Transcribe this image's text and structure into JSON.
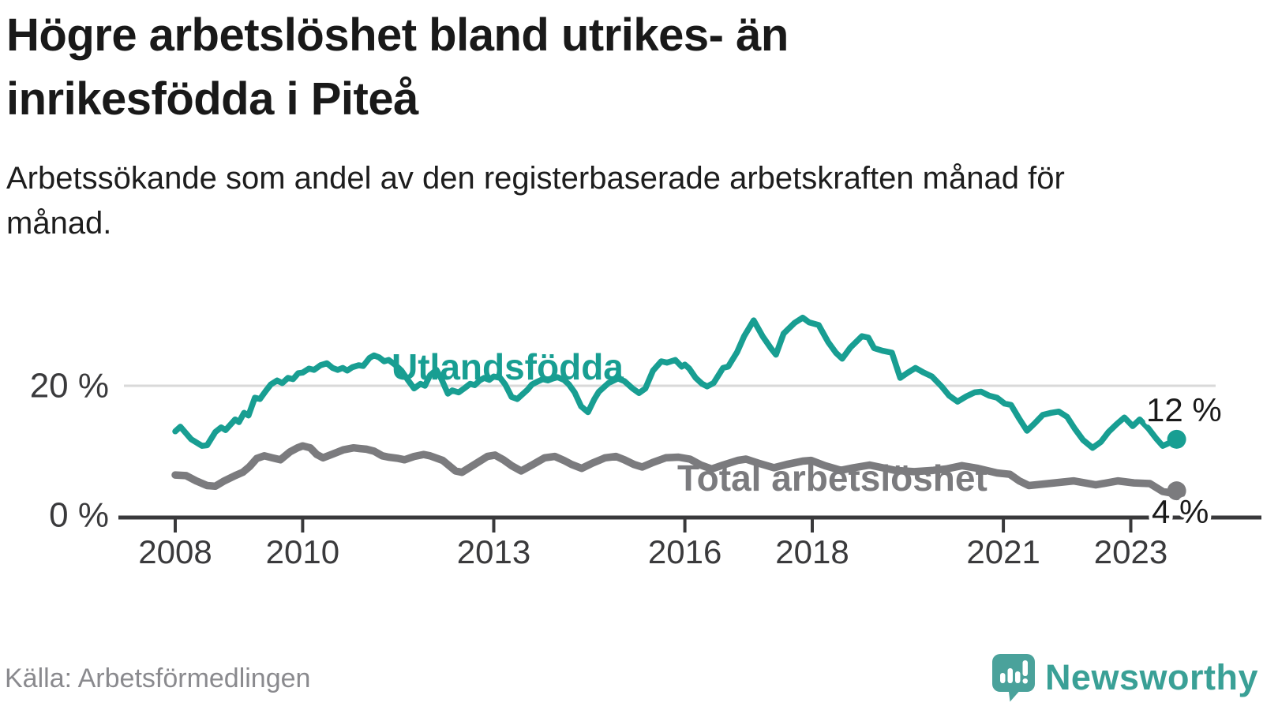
{
  "header": {
    "title": "Högre arbetslöshet bland utrikes- än inrikesfödda i Piteå",
    "subtitle": "Arbetssökande som andel av den registerbaserade arbetskraften månad för månad."
  },
  "footer": {
    "source": "Källa: Arbetsförmedlingen",
    "brand": "Newsworthy"
  },
  "colors": {
    "accent_teal": "#189e92",
    "line_gray": "#7b7b7e",
    "axis": "#39393b",
    "gridline": "#d9d9d9",
    "value_label": "#1a1a1a",
    "tick_text": "#3a3a3c",
    "logo_bubble": "#4aa29b",
    "logo_wordmark": "#3aa096"
  },
  "chart_data": {
    "type": "line",
    "title": "Högre arbetslöshet bland utrikes- än inrikesfödda i Piteå",
    "subtitle": "Arbetssökande som andel av den registerbaserade arbetskraften månad för månad.",
    "x_axis": {
      "unit": "year",
      "range": [
        2007.6,
        2024.4
      ],
      "ticks": [
        2008,
        2010,
        2013,
        2016,
        2018,
        2021,
        2023
      ],
      "tick_labels": [
        "2008",
        "2010",
        "2013",
        "2016",
        "2018",
        "2021",
        "2023"
      ]
    },
    "y_axis": {
      "unit": "percent",
      "range": [
        0,
        32
      ],
      "grid_on": true,
      "ticks": [
        {
          "value": 20,
          "label": "20 %"
        },
        {
          "value": 0,
          "label": "0 %"
        }
      ]
    },
    "legend_position": "inline-labels",
    "series": [
      {
        "name": "Utlandsfödda",
        "color": "#189e92",
        "end_label": "12 %",
        "end_value": 12,
        "points": [
          [
            2008.0,
            13.1
          ],
          [
            2008.08,
            13.8
          ],
          [
            2008.25,
            11.9
          ],
          [
            2008.42,
            10.9
          ],
          [
            2008.5,
            11.0
          ],
          [
            2008.63,
            13.0
          ],
          [
            2008.72,
            13.7
          ],
          [
            2008.79,
            13.3
          ],
          [
            2008.94,
            14.9
          ],
          [
            2009.0,
            14.5
          ],
          [
            2009.08,
            15.9
          ],
          [
            2009.15,
            15.5
          ],
          [
            2009.25,
            18.2
          ],
          [
            2009.33,
            18.0
          ],
          [
            2009.42,
            19.2
          ],
          [
            2009.5,
            20.2
          ],
          [
            2009.6,
            20.8
          ],
          [
            2009.68,
            20.4
          ],
          [
            2009.77,
            21.2
          ],
          [
            2009.85,
            21.0
          ],
          [
            2009.93,
            21.9
          ],
          [
            2010.0,
            22.0
          ],
          [
            2010.1,
            22.6
          ],
          [
            2010.18,
            22.4
          ],
          [
            2010.28,
            23.1
          ],
          [
            2010.38,
            23.4
          ],
          [
            2010.47,
            22.7
          ],
          [
            2010.55,
            22.4
          ],
          [
            2010.63,
            22.7
          ],
          [
            2010.7,
            22.3
          ],
          [
            2010.78,
            22.8
          ],
          [
            2010.88,
            23.1
          ],
          [
            2010.95,
            23.0
          ],
          [
            2011.05,
            24.2
          ],
          [
            2011.12,
            24.6
          ],
          [
            2011.2,
            24.3
          ],
          [
            2011.28,
            23.7
          ],
          [
            2011.35,
            23.9
          ],
          [
            2011.45,
            23.2
          ],
          [
            2011.55,
            22.3
          ],
          [
            2011.65,
            20.9
          ],
          [
            2011.75,
            19.6
          ],
          [
            2011.85,
            20.3
          ],
          [
            2011.92,
            20.0
          ],
          [
            2012.0,
            21.6
          ],
          [
            2012.1,
            22.4
          ],
          [
            2012.18,
            21.0
          ],
          [
            2012.28,
            18.8
          ],
          [
            2012.35,
            19.3
          ],
          [
            2012.45,
            19.0
          ],
          [
            2012.55,
            19.7
          ],
          [
            2012.63,
            20.3
          ],
          [
            2012.7,
            20.1
          ],
          [
            2012.78,
            20.8
          ],
          [
            2012.85,
            21.2
          ],
          [
            2012.93,
            20.9
          ],
          [
            2013.0,
            21.4
          ],
          [
            2013.1,
            21.2
          ],
          [
            2013.18,
            20.2
          ],
          [
            2013.28,
            18.3
          ],
          [
            2013.37,
            18.0
          ],
          [
            2013.45,
            18.7
          ],
          [
            2013.53,
            19.4
          ],
          [
            2013.6,
            20.2
          ],
          [
            2013.68,
            20.6
          ],
          [
            2013.77,
            21.0
          ],
          [
            2013.85,
            20.8
          ],
          [
            2013.93,
            21.1
          ],
          [
            2014.0,
            21.3
          ],
          [
            2014.1,
            20.9
          ],
          [
            2014.18,
            20.2
          ],
          [
            2014.27,
            19.0
          ],
          [
            2014.37,
            16.9
          ],
          [
            2014.48,
            16.0
          ],
          [
            2014.58,
            18.0
          ],
          [
            2014.65,
            19.1
          ],
          [
            2014.72,
            19.7
          ],
          [
            2014.8,
            20.4
          ],
          [
            2014.95,
            21.1
          ],
          [
            2015.05,
            20.7
          ],
          [
            2015.18,
            19.6
          ],
          [
            2015.28,
            18.9
          ],
          [
            2015.38,
            19.6
          ],
          [
            2015.5,
            22.3
          ],
          [
            2015.63,
            23.7
          ],
          [
            2015.72,
            23.5
          ],
          [
            2015.85,
            23.9
          ],
          [
            2015.95,
            22.9
          ],
          [
            2016.0,
            23.2
          ],
          [
            2016.07,
            22.6
          ],
          [
            2016.17,
            21.2
          ],
          [
            2016.27,
            20.3
          ],
          [
            2016.35,
            19.9
          ],
          [
            2016.45,
            20.4
          ],
          [
            2016.6,
            22.7
          ],
          [
            2016.68,
            22.9
          ],
          [
            2016.82,
            25.1
          ],
          [
            2016.93,
            27.5
          ],
          [
            2017.08,
            29.9
          ],
          [
            2017.22,
            27.5
          ],
          [
            2017.35,
            25.7
          ],
          [
            2017.43,
            24.7
          ],
          [
            2017.55,
            27.9
          ],
          [
            2017.72,
            29.5
          ],
          [
            2017.85,
            30.3
          ],
          [
            2017.95,
            29.6
          ],
          [
            2018.1,
            29.2
          ],
          [
            2018.25,
            26.6
          ],
          [
            2018.37,
            25.0
          ],
          [
            2018.47,
            24.1
          ],
          [
            2018.6,
            25.8
          ],
          [
            2018.78,
            27.5
          ],
          [
            2018.88,
            27.3
          ],
          [
            2018.97,
            25.7
          ],
          [
            2019.1,
            25.3
          ],
          [
            2019.25,
            25.0
          ],
          [
            2019.38,
            21.2
          ],
          [
            2019.5,
            22.0
          ],
          [
            2019.62,
            22.7
          ],
          [
            2019.75,
            22.0
          ],
          [
            2019.88,
            21.4
          ],
          [
            2020.03,
            19.9
          ],
          [
            2020.15,
            18.5
          ],
          [
            2020.28,
            17.6
          ],
          [
            2020.42,
            18.4
          ],
          [
            2020.55,
            19.0
          ],
          [
            2020.65,
            19.1
          ],
          [
            2020.78,
            18.5
          ],
          [
            2020.9,
            18.2
          ],
          [
            2021.02,
            17.3
          ],
          [
            2021.12,
            17.1
          ],
          [
            2021.25,
            15.0
          ],
          [
            2021.37,
            13.2
          ],
          [
            2021.5,
            14.4
          ],
          [
            2021.62,
            15.6
          ],
          [
            2021.75,
            15.9
          ],
          [
            2021.87,
            16.1
          ],
          [
            2022.0,
            15.3
          ],
          [
            2022.12,
            13.5
          ],
          [
            2022.25,
            11.8
          ],
          [
            2022.4,
            10.6
          ],
          [
            2022.53,
            11.5
          ],
          [
            2022.65,
            13.0
          ],
          [
            2022.78,
            14.2
          ],
          [
            2022.9,
            15.2
          ],
          [
            2023.03,
            13.9
          ],
          [
            2023.14,
            14.9
          ],
          [
            2023.28,
            13.5
          ],
          [
            2023.4,
            12.0
          ],
          [
            2023.5,
            10.9
          ],
          [
            2023.62,
            11.4
          ],
          [
            2023.72,
            11.9
          ]
        ]
      },
      {
        "name": "Total arbetslöshet",
        "color": "#7b7b7e",
        "end_label": "4 %",
        "end_value": 4,
        "points": [
          [
            2008.0,
            6.5
          ],
          [
            2008.17,
            6.4
          ],
          [
            2008.33,
            5.6
          ],
          [
            2008.5,
            4.9
          ],
          [
            2008.63,
            4.8
          ],
          [
            2008.77,
            5.6
          ],
          [
            2008.94,
            6.4
          ],
          [
            2009.06,
            6.9
          ],
          [
            2009.17,
            7.8
          ],
          [
            2009.28,
            9.0
          ],
          [
            2009.4,
            9.4
          ],
          [
            2009.52,
            9.1
          ],
          [
            2009.65,
            8.8
          ],
          [
            2009.8,
            10.0
          ],
          [
            2009.92,
            10.6
          ],
          [
            2010.0,
            10.9
          ],
          [
            2010.12,
            10.6
          ],
          [
            2010.22,
            9.6
          ],
          [
            2010.32,
            9.1
          ],
          [
            2010.48,
            9.7
          ],
          [
            2010.64,
            10.3
          ],
          [
            2010.8,
            10.6
          ],
          [
            2010.9,
            10.5
          ],
          [
            2011.0,
            10.4
          ],
          [
            2011.12,
            10.1
          ],
          [
            2011.25,
            9.4
          ],
          [
            2011.35,
            9.2
          ],
          [
            2011.5,
            9.0
          ],
          [
            2011.6,
            8.8
          ],
          [
            2011.75,
            9.3
          ],
          [
            2011.9,
            9.6
          ],
          [
            2012.0,
            9.4
          ],
          [
            2012.2,
            8.7
          ],
          [
            2012.4,
            7.1
          ],
          [
            2012.5,
            6.9
          ],
          [
            2012.65,
            7.8
          ],
          [
            2012.9,
            9.3
          ],
          [
            2013.02,
            9.5
          ],
          [
            2013.15,
            8.8
          ],
          [
            2013.28,
            7.9
          ],
          [
            2013.43,
            7.1
          ],
          [
            2013.6,
            8.0
          ],
          [
            2013.8,
            9.1
          ],
          [
            2013.96,
            9.3
          ],
          [
            2014.1,
            8.7
          ],
          [
            2014.22,
            8.1
          ],
          [
            2014.38,
            7.5
          ],
          [
            2014.55,
            8.3
          ],
          [
            2014.75,
            9.1
          ],
          [
            2014.92,
            9.3
          ],
          [
            2015.05,
            8.8
          ],
          [
            2015.2,
            8.1
          ],
          [
            2015.33,
            7.7
          ],
          [
            2015.5,
            8.4
          ],
          [
            2015.7,
            9.1
          ],
          [
            2015.9,
            9.2
          ],
          [
            2016.08,
            8.9
          ],
          [
            2016.25,
            8.0
          ],
          [
            2016.42,
            7.4
          ],
          [
            2016.6,
            8.0
          ],
          [
            2016.83,
            8.7
          ],
          [
            2016.96,
            8.9
          ],
          [
            2017.15,
            8.3
          ],
          [
            2017.4,
            7.6
          ],
          [
            2017.6,
            8.1
          ],
          [
            2017.85,
            8.6
          ],
          [
            2017.98,
            8.7
          ],
          [
            2018.2,
            7.9
          ],
          [
            2018.45,
            7.2
          ],
          [
            2018.65,
            7.6
          ],
          [
            2018.9,
            8.0
          ],
          [
            2019.1,
            7.6
          ],
          [
            2019.3,
            7.2
          ],
          [
            2019.6,
            7.0
          ],
          [
            2019.9,
            7.2
          ],
          [
            2020.1,
            7.4
          ],
          [
            2020.35,
            7.9
          ],
          [
            2020.6,
            7.5
          ],
          [
            2020.9,
            6.8
          ],
          [
            2021.1,
            6.6
          ],
          [
            2021.25,
            5.6
          ],
          [
            2021.4,
            4.9
          ],
          [
            2021.7,
            5.2
          ],
          [
            2022.1,
            5.6
          ],
          [
            2022.45,
            5.0
          ],
          [
            2022.8,
            5.6
          ],
          [
            2023.05,
            5.3
          ],
          [
            2023.3,
            5.2
          ],
          [
            2023.5,
            4.0
          ],
          [
            2023.62,
            3.8
          ],
          [
            2023.72,
            4.1
          ]
        ]
      }
    ]
  }
}
